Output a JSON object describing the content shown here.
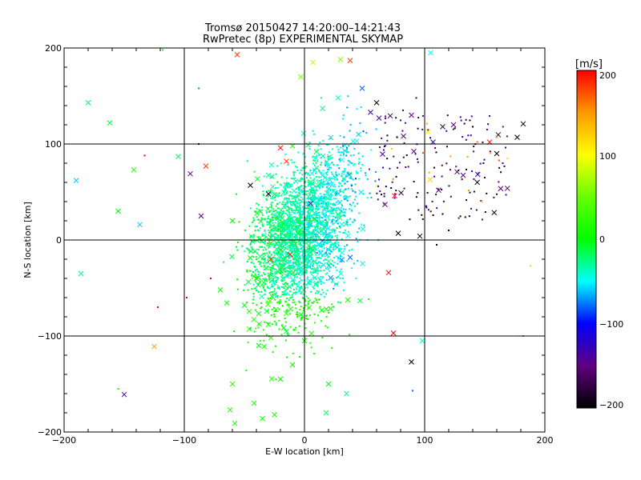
{
  "chart_data": {
    "type": "scatter",
    "title": "Tromsø 20150427 14:20:00–14:21:43",
    "subtitle": "RwPretec (8p) EXPERIMENTAL SKYMAP",
    "xlabel": "E-W location [km]",
    "ylabel": "N-S location [km]",
    "xlim": [
      -200,
      200
    ],
    "ylim": [
      -200,
      200
    ],
    "x_ticks": [
      "−200",
      "−100",
      "0",
      "100",
      "200"
    ],
    "y_ticks": [
      "−200",
      "−100",
      "0",
      "100",
      "200"
    ],
    "grid": true,
    "colorbar": {
      "label": "[m/s]",
      "range": [
        -200,
        200
      ],
      "ticks": [
        "200",
        "100",
        "0",
        "−100",
        "−200"
      ]
    },
    "marker_types": [
      "dot",
      "cross"
    ],
    "series": [
      {
        "points": [
          {
            "x": -180,
            "y": 143,
            "v": -20,
            "m": "x"
          },
          {
            "x": -162,
            "y": 122,
            "v": -10,
            "m": "x"
          },
          {
            "x": -190,
            "y": 62,
            "v": -60,
            "m": "x"
          },
          {
            "x": -142,
            "y": 73,
            "v": 20,
            "m": "x"
          },
          {
            "x": -155,
            "y": 30,
            "v": 0,
            "m": "x"
          },
          {
            "x": -137,
            "y": 16,
            "v": -60,
            "m": "x"
          },
          {
            "x": -186,
            "y": -35,
            "v": -30,
            "m": "x"
          },
          {
            "x": -150,
            "y": -161,
            "v": -140,
            "m": "x"
          },
          {
            "x": -125,
            "y": -111,
            "v": 150,
            "m": "x"
          },
          {
            "x": -105,
            "y": 87,
            "v": -20,
            "m": "x"
          },
          {
            "x": -95,
            "y": 69,
            "v": -150,
            "m": "x"
          },
          {
            "x": -86,
            "y": 25,
            "v": -140,
            "m": "x"
          },
          {
            "x": -82,
            "y": 77,
            "v": 180,
            "m": "x"
          },
          {
            "x": -56,
            "y": 193,
            "v": 180,
            "m": "x"
          },
          {
            "x": -45,
            "y": 57,
            "v": -200,
            "m": "x"
          },
          {
            "x": -30,
            "y": 48,
            "v": -190,
            "m": "x"
          },
          {
            "x": -20,
            "y": 96,
            "v": 200,
            "m": "x"
          },
          {
            "x": -15,
            "y": 82,
            "v": 180,
            "m": "x"
          },
          {
            "x": 30,
            "y": 188,
            "v": 60,
            "m": "x"
          },
          {
            "x": 38,
            "y": 187,
            "v": 180,
            "m": "x"
          },
          {
            "x": 60,
            "y": 143,
            "v": -200,
            "m": "x"
          },
          {
            "x": 55,
            "y": 133,
            "v": -130,
            "m": "x"
          },
          {
            "x": 62,
            "y": 127,
            "v": -140,
            "m": "x"
          },
          {
            "x": 89,
            "y": 130,
            "v": -150,
            "m": "x"
          },
          {
            "x": 105,
            "y": 195,
            "v": -50,
            "m": "x"
          },
          {
            "x": 115,
            "y": 118,
            "v": -170,
            "m": "x"
          },
          {
            "x": 124,
            "y": 120,
            "v": -150,
            "m": "x"
          },
          {
            "x": 154,
            "y": 102,
            "v": 190,
            "m": "x"
          },
          {
            "x": 182,
            "y": 121,
            "v": -200,
            "m": "x"
          },
          {
            "x": 177,
            "y": 107,
            "v": -200,
            "m": "x"
          },
          {
            "x": 160,
            "y": 90,
            "v": -200,
            "m": "x"
          },
          {
            "x": 107,
            "y": 102,
            "v": -120,
            "m": "x"
          },
          {
            "x": 127,
            "y": 71,
            "v": -170,
            "m": "x"
          },
          {
            "x": 75,
            "y": 46,
            "v": 200,
            "m": "x"
          },
          {
            "x": 67,
            "y": 37,
            "v": -150,
            "m": "x"
          },
          {
            "x": 78,
            "y": 7,
            "v": -200,
            "m": "x"
          },
          {
            "x": 96,
            "y": 4,
            "v": -200,
            "m": "x"
          },
          {
            "x": 70,
            "y": -34,
            "v": 200,
            "m": "x"
          },
          {
            "x": 74,
            "y": -97,
            "v": 200,
            "m": "x"
          },
          {
            "x": 98,
            "y": -105,
            "v": -40,
            "m": "x"
          },
          {
            "x": 89,
            "y": -127,
            "v": -200,
            "m": "x"
          },
          {
            "x": -50,
            "y": -68,
            "v": 0,
            "m": "x"
          },
          {
            "x": -60,
            "y": -150,
            "v": 30,
            "m": "x"
          },
          {
            "x": -62,
            "y": -177,
            "v": 20,
            "m": "x"
          },
          {
            "x": -58,
            "y": -191,
            "v": 10,
            "m": "x"
          },
          {
            "x": -42,
            "y": -170,
            "v": 10,
            "m": "x"
          },
          {
            "x": -35,
            "y": -186,
            "v": 0,
            "m": "x"
          },
          {
            "x": -25,
            "y": -182,
            "v": 10,
            "m": "x"
          },
          {
            "x": -20,
            "y": -145,
            "v": 0,
            "m": "x"
          },
          {
            "x": -10,
            "y": -130,
            "v": 0,
            "m": "x"
          },
          {
            "x": 20,
            "y": -150,
            "v": -10,
            "m": "x"
          },
          {
            "x": 18,
            "y": -180,
            "v": -20,
            "m": "x"
          },
          {
            "x": 35,
            "y": -160,
            "v": -30,
            "m": "x"
          },
          {
            "x": -38,
            "y": -110,
            "v": 0,
            "m": "x"
          },
          {
            "x": -30,
            "y": -88,
            "v": 10,
            "m": "x"
          },
          {
            "x": -15,
            "y": -95,
            "v": -10,
            "m": "x"
          },
          {
            "x": 0,
            "y": -105,
            "v": 0,
            "m": "x"
          },
          {
            "x": -70,
            "y": -52,
            "v": 0,
            "m": "x"
          },
          {
            "x": -40,
            "y": -40,
            "v": 0,
            "m": "x"
          },
          {
            "x": -28,
            "y": -20,
            "v": 180,
            "m": "x"
          },
          {
            "x": -12,
            "y": -15,
            "v": 190,
            "m": "x"
          },
          {
            "x": 5,
            "y": 38,
            "v": -150,
            "m": "x"
          },
          {
            "x": 20,
            "y": -10,
            "v": -60,
            "m": "x"
          },
          {
            "x": 38,
            "y": -18,
            "v": -80,
            "m": "x"
          },
          {
            "x": 28,
            "y": 148,
            "v": -40,
            "m": "x"
          },
          {
            "x": 15,
            "y": 137,
            "v": -30,
            "m": "x"
          },
          {
            "x": -10,
            "y": 98,
            "v": 20,
            "m": "x"
          },
          {
            "x": 10,
            "y": 92,
            "v": -10,
            "m": "x"
          },
          {
            "x": -60,
            "y": 20,
            "v": 0,
            "m": "x"
          },
          {
            "x": -5,
            "y": 20,
            "v": 10,
            "m": "x"
          },
          {
            "x": 8,
            "y": 22,
            "v": 10,
            "m": "x"
          },
          {
            "x": 48,
            "y": 158,
            "v": -80,
            "m": "x"
          },
          {
            "x": 45,
            "y": 110,
            "v": -60,
            "m": "x"
          },
          {
            "x": -3,
            "y": 170,
            "v": 60,
            "m": "x"
          },
          {
            "x": 7,
            "y": 185,
            "v": 80,
            "m": "x"
          },
          {
            "x": -88,
            "y": 158,
            "v": -70,
            "m": "."
          },
          {
            "x": -118,
            "y": 198,
            "v": 10,
            "m": "."
          },
          {
            "x": -133,
            "y": 88,
            "v": 200,
            "m": "."
          },
          {
            "x": -88,
            "y": 100,
            "v": -130,
            "m": "."
          },
          {
            "x": -122,
            "y": -70,
            "v": 200,
            "m": "."
          },
          {
            "x": -155,
            "y": -155,
            "v": 0,
            "m": "."
          },
          {
            "x": -78,
            "y": -40,
            "v": 200,
            "m": "."
          },
          {
            "x": -98,
            "y": -60,
            "v": 200,
            "m": "."
          },
          {
            "x": 188,
            "y": -27,
            "v": 120,
            "m": "."
          },
          {
            "x": 182,
            "y": -100,
            "v": 10,
            "m": "."
          },
          {
            "x": 90,
            "y": -157,
            "v": -80,
            "m": "."
          },
          {
            "x": 150,
            "y": 65,
            "v": -170,
            "m": "."
          },
          {
            "x": 140,
            "y": 118,
            "v": -200,
            "m": "."
          },
          {
            "x": 93,
            "y": 148,
            "v": -170,
            "m": "."
          },
          {
            "x": 110,
            "y": -5,
            "v": -200,
            "m": "."
          },
          {
            "x": 120,
            "y": 10,
            "v": -190,
            "m": "."
          },
          {
            "x": 82,
            "y": 135,
            "v": -150,
            "m": "."
          },
          {
            "x": 165,
            "y": 80,
            "v": -140,
            "m": "."
          }
        ]
      }
    ]
  }
}
